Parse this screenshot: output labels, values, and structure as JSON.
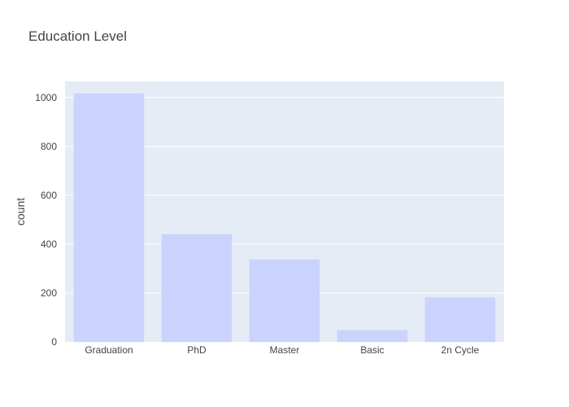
{
  "chart_data": {
    "type": "bar",
    "title": "Education Level",
    "xlabel": "",
    "ylabel": "count",
    "categories": [
      "Graduation",
      "PhD",
      "Master",
      "Basic",
      "2n Cycle"
    ],
    "values": [
      1016,
      440,
      337,
      48,
      182
    ],
    "ylim": [
      0,
      1066
    ],
    "yticks": [
      0,
      200,
      400,
      600,
      800,
      1000
    ],
    "grid": true,
    "legend": "none",
    "colors": {
      "plot_bg": "#e5ecf6",
      "bar_fill": "#c9d3fb",
      "bar_line": "#d4dcfc",
      "grid": "#ffffff"
    }
  }
}
